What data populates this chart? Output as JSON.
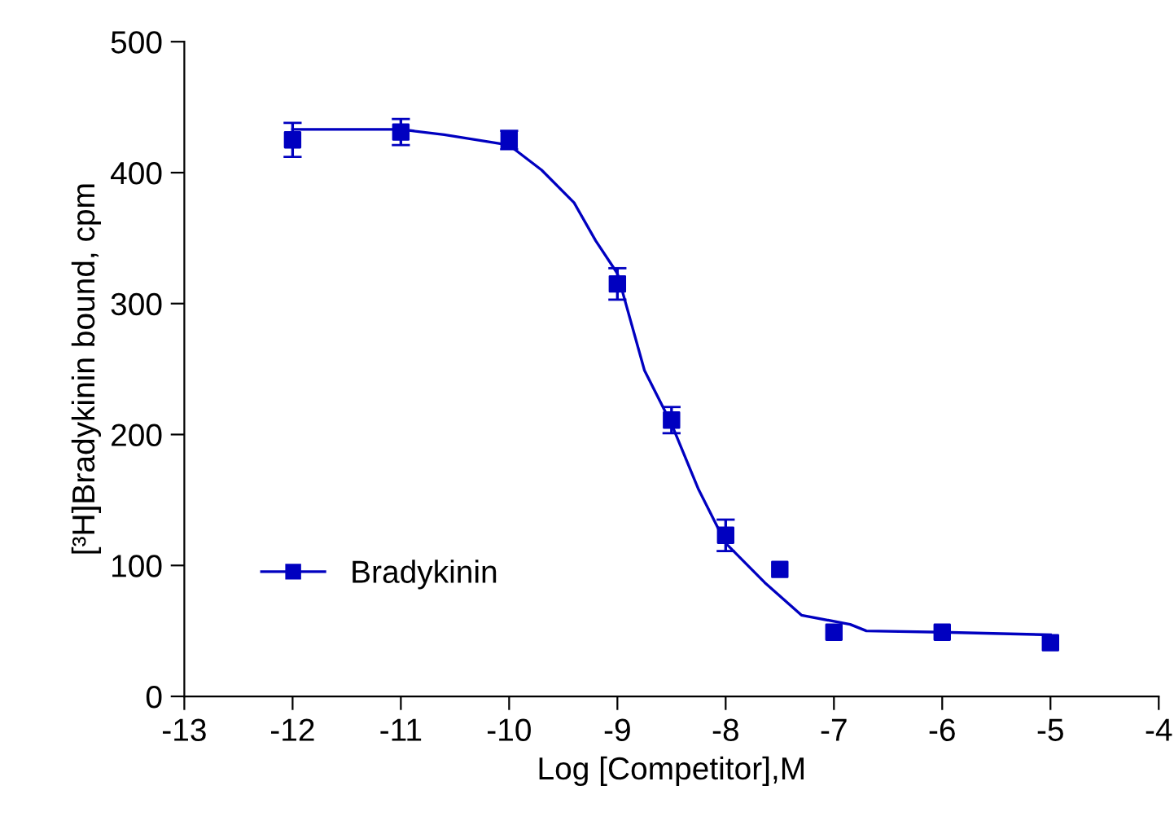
{
  "chart_data": {
    "type": "scatter",
    "xlabel": "Log [Competitor],M",
    "ylabel": "[³H]Bradykinin bound, cpm",
    "xlim": [
      -13,
      -4
    ],
    "xticks": [
      -13,
      -12,
      -11,
      -10,
      -9,
      -8,
      -7,
      -6,
      -5,
      -4
    ],
    "ylim": [
      0,
      500
    ],
    "yticks": [
      0,
      100,
      200,
      300,
      400,
      500
    ],
    "grid": false,
    "legend": "lower left",
    "series": [
      {
        "name": "Bradykinin",
        "marker": "square",
        "color": "#0000c0",
        "x": [
          -12,
          -11,
          -10,
          -9,
          -8.5,
          -8,
          -7.5,
          -7,
          -6,
          -5
        ],
        "values": [
          425,
          431,
          425,
          315,
          211,
          123,
          97,
          49,
          49,
          41
        ],
        "errors": [
          13,
          10,
          7,
          12,
          10,
          12,
          null,
          null,
          null,
          null
        ]
      },
      {
        "type": "line",
        "marker": "none",
        "color": "#0000c0",
        "x": [
          -12,
          -11,
          -10.6,
          -10,
          -9.7,
          -9.4,
          -9.2,
          -9,
          -8.75,
          -8.5,
          -8.25,
          -8,
          -7.64,
          -7.3,
          -6.85,
          -6.7,
          -6,
          -5
        ],
        "values": [
          433,
          433,
          429,
          421,
          402,
          377,
          348,
          323,
          249,
          208,
          158,
          117,
          87,
          62,
          55,
          50,
          49,
          47
        ]
      }
    ]
  }
}
